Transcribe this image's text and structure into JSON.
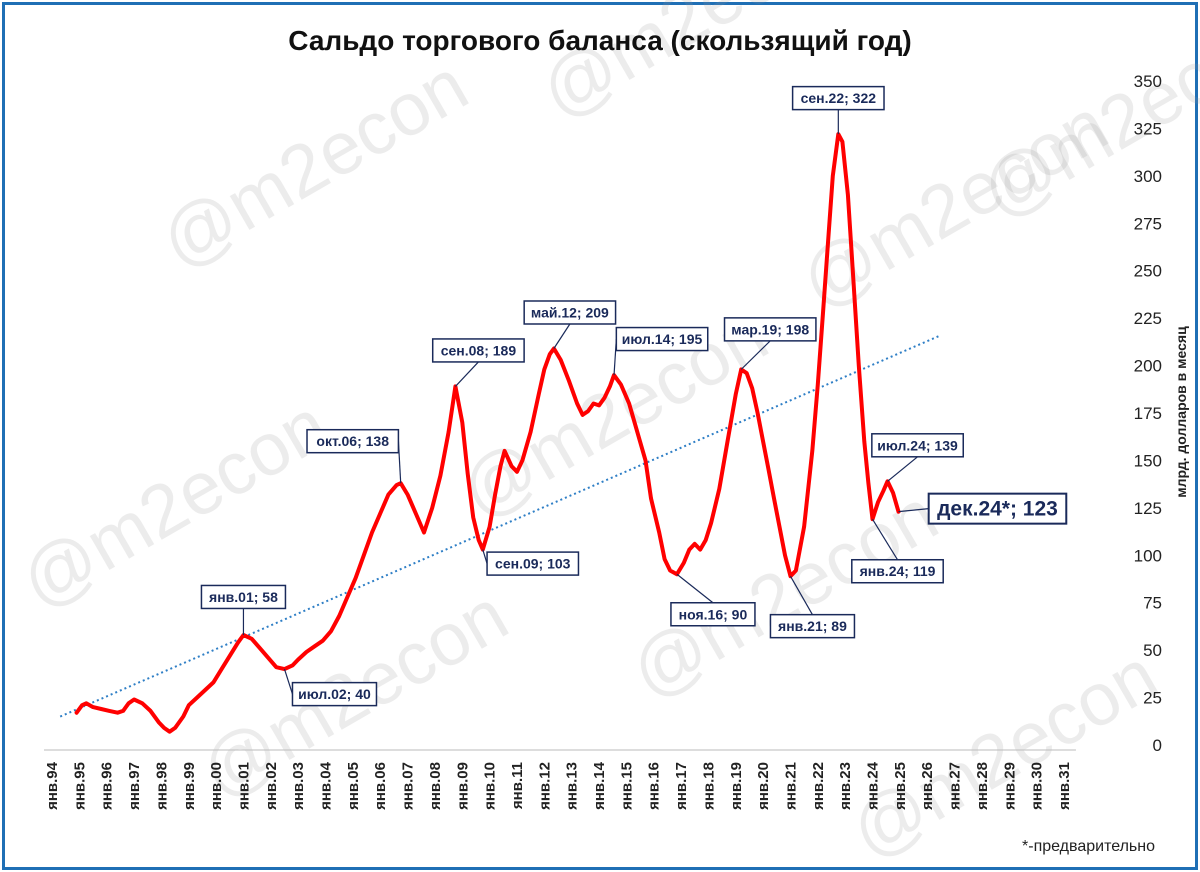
{
  "watermark": "@m2econ",
  "footnote": "*-предварительно",
  "colors": {
    "line": "#ff0000",
    "trend": "#2f7fc6",
    "annotation": "#1a2a5a",
    "frame": "#1f6fb5"
  },
  "chart_data": {
    "type": "line",
    "title": "Сальдо торгового баланса (скользящий год)",
    "ylabel": "млрд. долларов в месяц",
    "xlabel": "",
    "ylim": [
      0,
      350
    ],
    "ytick_step": 25,
    "y_axis_position": "right",
    "grid": false,
    "x_tick_labels": [
      "янв.94",
      "янв.95",
      "янв.96",
      "янв.97",
      "янв.98",
      "янв.99",
      "янв.00",
      "янв.01",
      "янв.02",
      "янв.03",
      "янв.04",
      "янв.05",
      "янв.06",
      "янв.07",
      "янв.08",
      "янв.09",
      "янв.10",
      "янв.11",
      "янв.12",
      "янв.13",
      "янв.14",
      "янв.15",
      "янв.16",
      "янв.17",
      "янв.18",
      "янв.19",
      "янв.20",
      "янв.21",
      "янв.22",
      "янв.23",
      "янв.24",
      "янв.25",
      "янв.26",
      "янв.27",
      "янв.28",
      "янв.29",
      "янв.30",
      "янв.31"
    ],
    "series": [
      {
        "points": [
          [
            1994.9,
            17
          ],
          [
            1995.1,
            21
          ],
          [
            1995.25,
            22
          ],
          [
            1995.5,
            20
          ],
          [
            1995.8,
            19
          ],
          [
            1996.1,
            18
          ],
          [
            1996.4,
            17
          ],
          [
            1996.6,
            18
          ],
          [
            1996.8,
            22
          ],
          [
            1997.0,
            24
          ],
          [
            1997.3,
            22
          ],
          [
            1997.6,
            18
          ],
          [
            1997.9,
            12
          ],
          [
            1998.1,
            9
          ],
          [
            1998.3,
            7
          ],
          [
            1998.5,
            9
          ],
          [
            1998.8,
            15
          ],
          [
            1999.0,
            21
          ],
          [
            1999.3,
            25
          ],
          [
            1999.6,
            29
          ],
          [
            1999.9,
            33
          ],
          [
            2000.2,
            40
          ],
          [
            2000.5,
            47
          ],
          [
            2000.8,
            54
          ],
          [
            2001.0,
            58
          ],
          [
            2001.3,
            56
          ],
          [
            2001.6,
            51
          ],
          [
            2001.9,
            46
          ],
          [
            2002.2,
            41
          ],
          [
            2002.5,
            40
          ],
          [
            2002.8,
            42
          ],
          [
            2003.0,
            45
          ],
          [
            2003.3,
            49
          ],
          [
            2003.6,
            52
          ],
          [
            2003.9,
            55
          ],
          [
            2004.2,
            60
          ],
          [
            2004.5,
            68
          ],
          [
            2004.8,
            78
          ],
          [
            2005.1,
            88
          ],
          [
            2005.4,
            100
          ],
          [
            2005.7,
            112
          ],
          [
            2006.0,
            122
          ],
          [
            2006.3,
            132
          ],
          [
            2006.6,
            137
          ],
          [
            2006.75,
            138
          ],
          [
            2007.0,
            132
          ],
          [
            2007.3,
            122
          ],
          [
            2007.6,
            112
          ],
          [
            2007.9,
            125
          ],
          [
            2008.2,
            142
          ],
          [
            2008.5,
            165
          ],
          [
            2008.75,
            189
          ],
          [
            2009.0,
            170
          ],
          [
            2009.2,
            143
          ],
          [
            2009.4,
            120
          ],
          [
            2009.6,
            108
          ],
          [
            2009.75,
            103
          ],
          [
            2010.0,
            115
          ],
          [
            2010.2,
            132
          ],
          [
            2010.4,
            147
          ],
          [
            2010.55,
            155
          ],
          [
            2010.8,
            147
          ],
          [
            2011.0,
            144
          ],
          [
            2011.2,
            150
          ],
          [
            2011.5,
            165
          ],
          [
            2011.8,
            185
          ],
          [
            2012.0,
            198
          ],
          [
            2012.2,
            206
          ],
          [
            2012.35,
            209
          ],
          [
            2012.6,
            203
          ],
          [
            2012.9,
            192
          ],
          [
            2013.2,
            180
          ],
          [
            2013.4,
            174
          ],
          [
            2013.6,
            176
          ],
          [
            2013.8,
            180
          ],
          [
            2014.0,
            179
          ],
          [
            2014.2,
            183
          ],
          [
            2014.4,
            189
          ],
          [
            2014.55,
            195
          ],
          [
            2014.8,
            190
          ],
          [
            2015.1,
            180
          ],
          [
            2015.4,
            165
          ],
          [
            2015.7,
            150
          ],
          [
            2015.9,
            130
          ],
          [
            2016.2,
            112
          ],
          [
            2016.4,
            98
          ],
          [
            2016.6,
            92
          ],
          [
            2016.85,
            90
          ],
          [
            2017.1,
            96
          ],
          [
            2017.3,
            103
          ],
          [
            2017.5,
            106
          ],
          [
            2017.7,
            103
          ],
          [
            2017.9,
            108
          ],
          [
            2018.1,
            117
          ],
          [
            2018.4,
            135
          ],
          [
            2018.7,
            160
          ],
          [
            2019.0,
            185
          ],
          [
            2019.2,
            198
          ],
          [
            2019.4,
            196
          ],
          [
            2019.6,
            188
          ],
          [
            2019.8,
            175
          ],
          [
            2020.0,
            160
          ],
          [
            2020.2,
            145
          ],
          [
            2020.4,
            130
          ],
          [
            2020.6,
            115
          ],
          [
            2020.8,
            100
          ],
          [
            2021.0,
            89
          ],
          [
            2021.2,
            92
          ],
          [
            2021.5,
            115
          ],
          [
            2021.8,
            155
          ],
          [
            2022.0,
            190
          ],
          [
            2022.2,
            230
          ],
          [
            2022.4,
            270
          ],
          [
            2022.55,
            300
          ],
          [
            2022.75,
            322
          ],
          [
            2022.9,
            318
          ],
          [
            2023.1,
            290
          ],
          [
            2023.3,
            245
          ],
          [
            2023.5,
            200
          ],
          [
            2023.7,
            160
          ],
          [
            2023.85,
            138
          ],
          [
            2024.0,
            119
          ],
          [
            2024.2,
            128
          ],
          [
            2024.4,
            134
          ],
          [
            2024.55,
            139
          ],
          [
            2024.75,
            133
          ],
          [
            2024.95,
            123
          ]
        ]
      }
    ],
    "trendline": {
      "style": "dotted",
      "from": [
        1994.3,
        15
      ],
      "to": [
        2026.5,
        216
      ]
    },
    "annotations": [
      {
        "label": "янв.01; 58",
        "x": 2001.0,
        "y": 58
      },
      {
        "label": "июл.02; 40",
        "x": 2002.5,
        "y": 40
      },
      {
        "label": "окт.06; 138",
        "x": 2006.75,
        "y": 138
      },
      {
        "label": "сен.08; 189",
        "x": 2008.75,
        "y": 189
      },
      {
        "label": "сен.09; 103",
        "x": 2009.75,
        "y": 103
      },
      {
        "label": "май.12; 209",
        "x": 2012.35,
        "y": 209
      },
      {
        "label": "июл.14; 195",
        "x": 2014.55,
        "y": 195
      },
      {
        "label": "ноя.16; 90",
        "x": 2016.85,
        "y": 90
      },
      {
        "label": "мар.19; 198",
        "x": 2019.2,
        "y": 198
      },
      {
        "label": "янв.21; 89",
        "x": 2021.0,
        "y": 89
      },
      {
        "label": "сен.22; 322",
        "x": 2022.75,
        "y": 322
      },
      {
        "label": "янв.24; 119",
        "x": 2024.0,
        "y": 119
      },
      {
        "label": "июл.24; 139",
        "x": 2024.55,
        "y": 139
      },
      {
        "label": "дек.24*; 123",
        "x": 2024.95,
        "y": 123
      }
    ]
  }
}
